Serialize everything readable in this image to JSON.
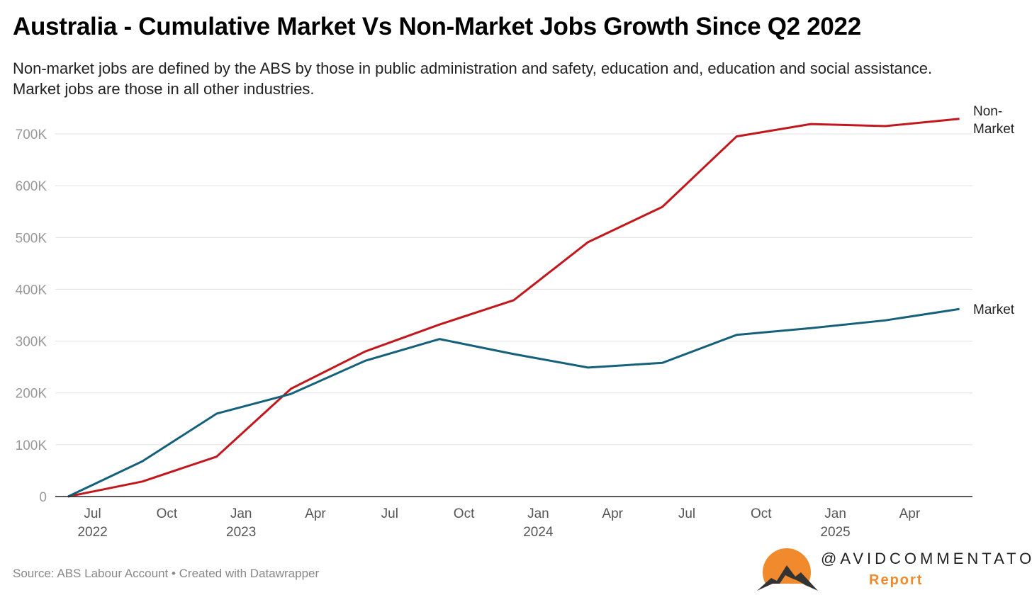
{
  "title": "Australia - Cumulative Market Vs Non-Market Jobs Growth Since Q2 2022",
  "subtitle": "Non-market jobs are defined by the ABS by those in public administration and safety, education and, education and social assistance. Market jobs are those in all other industries.",
  "source": "Source: ABS Labour Account • Created with Datawrapper",
  "logo": {
    "handle": "@AVIDCOMMENTATOR",
    "sub": "Report"
  },
  "chart_data": {
    "type": "line",
    "title": "Australia - Cumulative Market Vs Non-Market Jobs Growth Since Q2 2022",
    "xlabel": "",
    "ylabel": "",
    "ylim": [
      0,
      700000
    ],
    "grid": true,
    "x": [
      "Q2 2022",
      "Q3 2022",
      "Q4 2022",
      "Q1 2023",
      "Q2 2023",
      "Q3 2023",
      "Q4 2023",
      "Q1 2024",
      "Q2 2024",
      "Q3 2024",
      "Q4 2024",
      "Q1 2025",
      "Q2 2025"
    ],
    "y_ticks": [
      {
        "v": 0,
        "label": "0"
      },
      {
        "v": 100000,
        "label": "100K"
      },
      {
        "v": 200000,
        "label": "200K"
      },
      {
        "v": 300000,
        "label": "300K"
      },
      {
        "v": 400000,
        "label": "400K"
      },
      {
        "v": 500000,
        "label": "500K"
      },
      {
        "v": 600000,
        "label": "600K"
      },
      {
        "v": 700000,
        "label": "700K"
      }
    ],
    "x_ticks": [
      {
        "pos": 0.33,
        "label": "Jul",
        "year": "2022"
      },
      {
        "pos": 1.33,
        "label": "Oct",
        "year": ""
      },
      {
        "pos": 2.33,
        "label": "Jan",
        "year": "2023"
      },
      {
        "pos": 3.33,
        "label": "Apr",
        "year": ""
      },
      {
        "pos": 4.33,
        "label": "Jul",
        "year": ""
      },
      {
        "pos": 5.33,
        "label": "Oct",
        "year": ""
      },
      {
        "pos": 6.33,
        "label": "Jan",
        "year": "2024"
      },
      {
        "pos": 7.33,
        "label": "Apr",
        "year": ""
      },
      {
        "pos": 8.33,
        "label": "Jul",
        "year": ""
      },
      {
        "pos": 9.33,
        "label": "Oct",
        "year": ""
      },
      {
        "pos": 10.33,
        "label": "Jan",
        "year": "2025"
      },
      {
        "pos": 11.33,
        "label": "Apr",
        "year": ""
      }
    ],
    "series": [
      {
        "name": "Non-Market",
        "label_lines": [
          "Non-",
          "Market"
        ],
        "color": "#c2171c",
        "values": [
          0,
          29000,
          77000,
          208000,
          280000,
          332000,
          379000,
          491000,
          559000,
          695000,
          719000,
          715000,
          729000
        ]
      },
      {
        "name": "Market",
        "label_lines": [
          "Market"
        ],
        "color": "#15607a",
        "values": [
          0,
          68000,
          160000,
          198000,
          262000,
          304000,
          275000,
          249000,
          258000,
          312000,
          325000,
          340000,
          362000
        ]
      }
    ]
  }
}
